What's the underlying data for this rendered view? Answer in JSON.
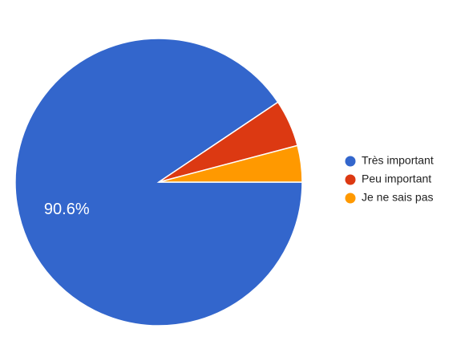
{
  "chart_data": {
    "type": "pie",
    "categories": [
      "Très important",
      "Peu important",
      "Je ne sais pas"
    ],
    "values": [
      90.6,
      5.3,
      4.1
    ],
    "value_labels": [
      "90.6%",
      null,
      null
    ],
    "colors": [
      "#3366cc",
      "#dc3912",
      "#ff9900"
    ],
    "legend": "right"
  }
}
